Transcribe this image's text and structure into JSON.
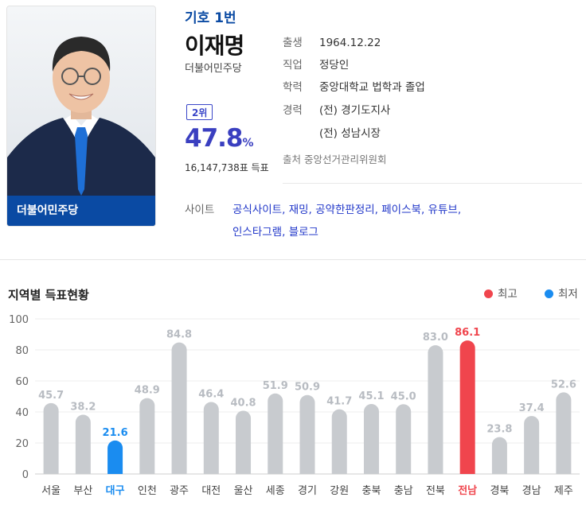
{
  "candidate": {
    "number_label": "기호 1번",
    "name": "이재명",
    "party": "더불어민주당",
    "photo_band_label": "더불어민주당",
    "rank": "2위",
    "vote_rate": "47.8",
    "vote_rate_unit": "%",
    "vote_count": "16,147,738표 득표"
  },
  "profile": {
    "birth_label": "출생",
    "birth": "1964.12.22",
    "job_label": "직업",
    "job": "정당인",
    "education_label": "학력",
    "education": "중앙대학교 법학과 졸업",
    "career_label": "경력",
    "career1": "(전) 경기도지사",
    "career2": "(전) 성남시장",
    "source": "출처 중앙선거관리위원회"
  },
  "sites": {
    "label": "사이트",
    "links": [
      "공식사이트",
      "재밍",
      "공약한판정리",
      "페이스북",
      "유튜브",
      "인스타그램",
      "블로그"
    ]
  },
  "section": {
    "title": "지역별 득표현황",
    "legend_high": "최고",
    "legend_low": "최저"
  },
  "colors": {
    "bar": "#c8cbcf",
    "high": "#f0454d",
    "low": "#1a8cf0",
    "label": "#b8bcc2",
    "party_blue": "#0a4aa3"
  },
  "chart_data": {
    "type": "bar",
    "title": "지역별 득표현황",
    "categories": [
      "서울",
      "부산",
      "대구",
      "인천",
      "광주",
      "대전",
      "울산",
      "세종",
      "경기",
      "강원",
      "충북",
      "충남",
      "전북",
      "전남",
      "경북",
      "경남",
      "제주"
    ],
    "values": [
      45.7,
      38.2,
      21.6,
      48.9,
      84.8,
      46.4,
      40.8,
      51.9,
      50.9,
      41.7,
      45.1,
      45.0,
      83.0,
      86.1,
      23.8,
      37.4,
      52.6
    ],
    "ylim": [
      0,
      100
    ],
    "yticks": [
      0,
      20,
      40,
      60,
      80,
      100
    ],
    "highest": "전남",
    "lowest": "대구",
    "grid": true,
    "legend_position": "top-right"
  }
}
